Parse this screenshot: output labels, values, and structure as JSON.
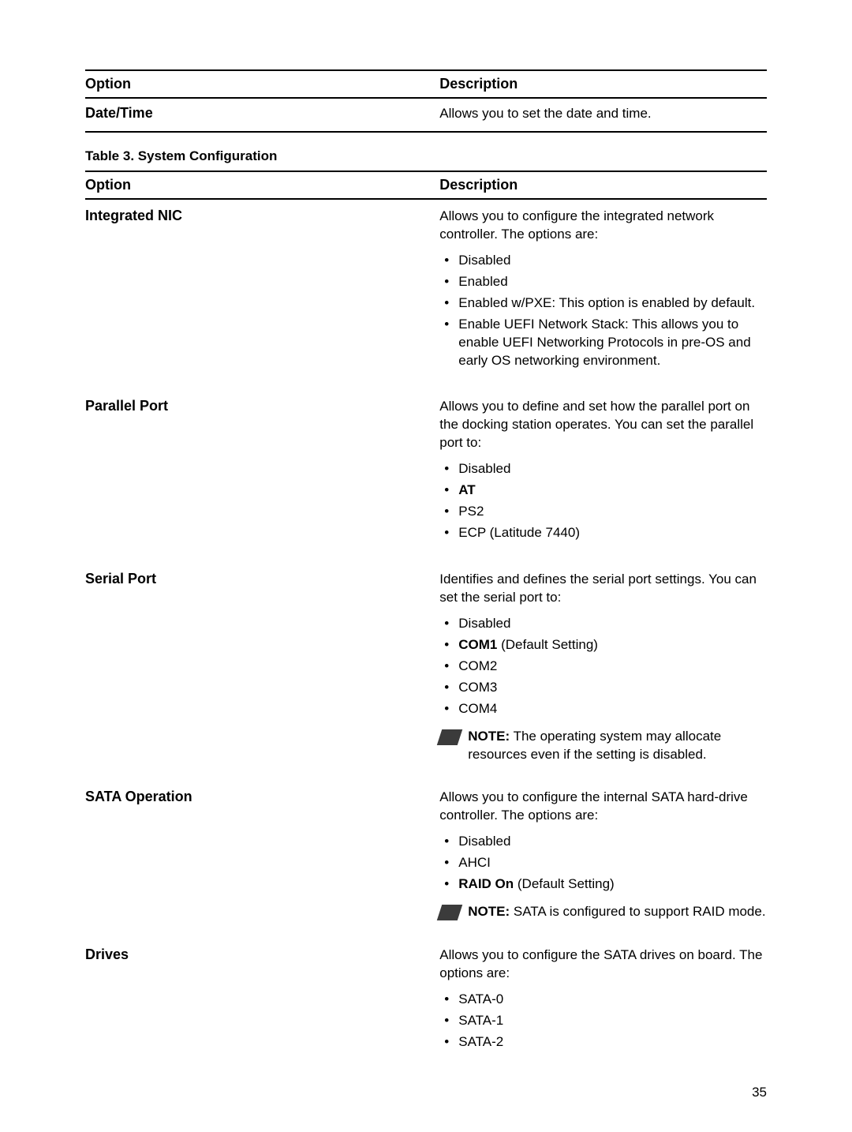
{
  "header1": {
    "option": "Option",
    "description": "Description"
  },
  "datetime": {
    "label": "Date/Time",
    "desc": "Allows you to set the date and time."
  },
  "tableCaption": "Table 3. System Configuration",
  "header2": {
    "option": "Option",
    "description": "Description"
  },
  "integratedNic": {
    "label": "Integrated NIC",
    "desc": "Allows you to configure the integrated network controller. The options are:",
    "items": {
      "i0": "Disabled",
      "i1": "Enabled",
      "i2": "Enabled w/PXE: This option is enabled by default.",
      "i3": "Enable UEFI Network Stack: This allows you to enable UEFI Networking Protocols in pre-OS and early OS networking environment."
    }
  },
  "parallelPort": {
    "label": "Parallel Port",
    "desc": "Allows you to define and set how the parallel port on the docking station operates. You can set the parallel port to:",
    "items": {
      "i0": "Disabled",
      "i1": "AT",
      "i2": "PS2",
      "i3": "ECP (Latitude 7440)"
    }
  },
  "serialPort": {
    "label": "Serial Port",
    "desc": "Identifies and defines the serial port settings. You can set the serial port to:",
    "items": {
      "i0": "Disabled",
      "i1_prefix": "COM1",
      "i1_suffix": " (Default Setting)",
      "i2": "COM2",
      "i3": "COM3",
      "i4": "COM4"
    },
    "note_prefix": "NOTE:",
    "note_body": " The operating system may allocate resources even if the setting is disabled."
  },
  "sataOperation": {
    "label": "SATA Operation",
    "desc": "Allows you to configure the internal SATA hard-drive controller. The options are:",
    "items": {
      "i0": "Disabled",
      "i1": "AHCI",
      "i2_prefix": "RAID On",
      "i2_suffix": " (Default Setting)"
    },
    "note_prefix": "NOTE:",
    "note_body": " SATA is configured to support RAID mode."
  },
  "drives": {
    "label": "Drives",
    "desc": "Allows you to configure the SATA drives on board. The options are:",
    "items": {
      "i0": "SATA-0",
      "i1": "SATA-1",
      "i2": "SATA-2"
    }
  },
  "pageNumber": "35"
}
